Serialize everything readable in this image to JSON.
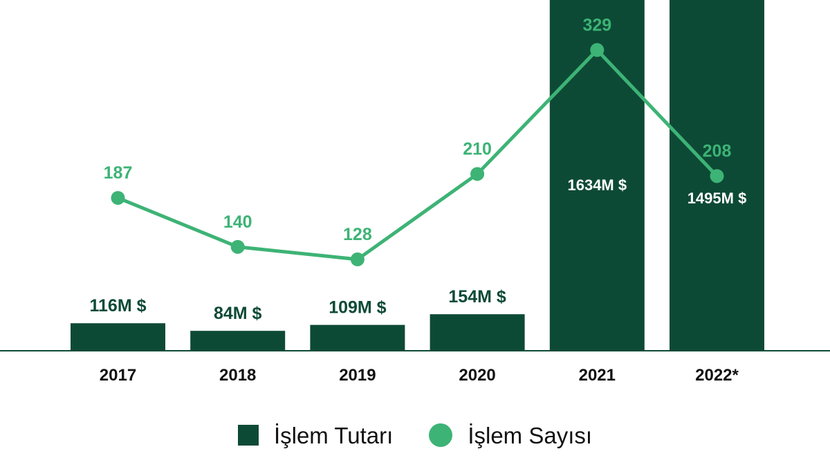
{
  "chart_data": {
    "type": "bar+line",
    "title": "",
    "xlabel": "",
    "ylabel": "",
    "categories": [
      "2017",
      "2018",
      "2019",
      "2020",
      "2021",
      "2022*"
    ],
    "series": [
      {
        "name": "İşlem Tutarı",
        "type": "bar",
        "values": [
          116,
          84,
          109,
          154,
          1634,
          1495
        ],
        "labels": [
          "116M $",
          "84M $",
          "109M $",
          "154M $",
          "1634M $",
          "1495M $"
        ],
        "color": "#0d4a36"
      },
      {
        "name": "İşlem Sayısı",
        "type": "line",
        "values": [
          187,
          140,
          128,
          210,
          329,
          208
        ],
        "labels": [
          "187",
          "140",
          "128",
          "210",
          "329",
          "208"
        ],
        "color": "#3db375"
      }
    ],
    "grid": false,
    "legend_position": "bottom"
  }
}
